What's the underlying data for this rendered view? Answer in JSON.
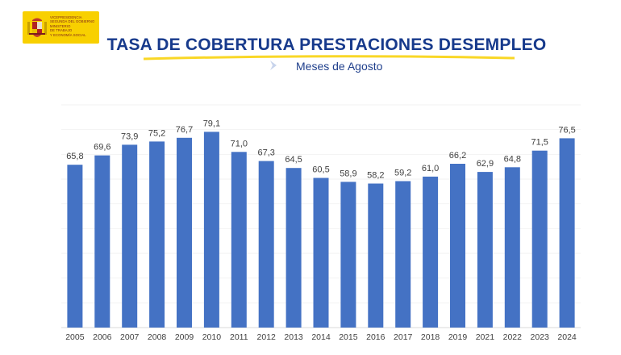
{
  "logo": {
    "text_lines": [
      "VICEPRESIDENCIA",
      "SEGUNDA DEL GOBIERNO",
      "MINISTERIO",
      "DE TRABAJO",
      "Y ECONOMÍA SOCIAL"
    ],
    "color": "#f8d000"
  },
  "header": {
    "title": "TASA DE COBERTURA PRESTACIONES DESEMPLEO",
    "subtitle": "Meses de Agosto"
  },
  "colors": {
    "bar": "#4472c4",
    "title": "#173a8c",
    "accent": "#f8d000"
  },
  "chart_data": {
    "type": "bar",
    "title": "TASA DE COBERTURA PRESTACIONES DESEMPLEO",
    "subtitle": "Meses de Agosto",
    "categories": [
      "2005",
      "2006",
      "2007",
      "2008",
      "2009",
      "2010",
      "2011",
      "2012",
      "2013",
      "2014",
      "2015",
      "2016",
      "2017",
      "2018",
      "2019",
      "2021",
      "2022",
      "2023",
      "2024"
    ],
    "values": [
      65.8,
      69.6,
      73.9,
      75.2,
      76.7,
      79.1,
      71.0,
      67.3,
      64.5,
      60.5,
      58.9,
      58.2,
      59.2,
      61.0,
      66.2,
      62.9,
      64.8,
      71.5,
      76.5
    ],
    "value_labels": [
      "65,8",
      "69,6",
      "73,9",
      "75,2",
      "76,7",
      "79,1",
      "71,0",
      "67,3",
      "64,5",
      "60,5",
      "58,9",
      "58,2",
      "59,2",
      "61,0",
      "66,2",
      "62,9",
      "64,8",
      "71,5",
      "76,5"
    ],
    "xlabel": "",
    "ylabel": "",
    "ylim": [
      0,
      90
    ],
    "grid": true,
    "legend": "none"
  }
}
